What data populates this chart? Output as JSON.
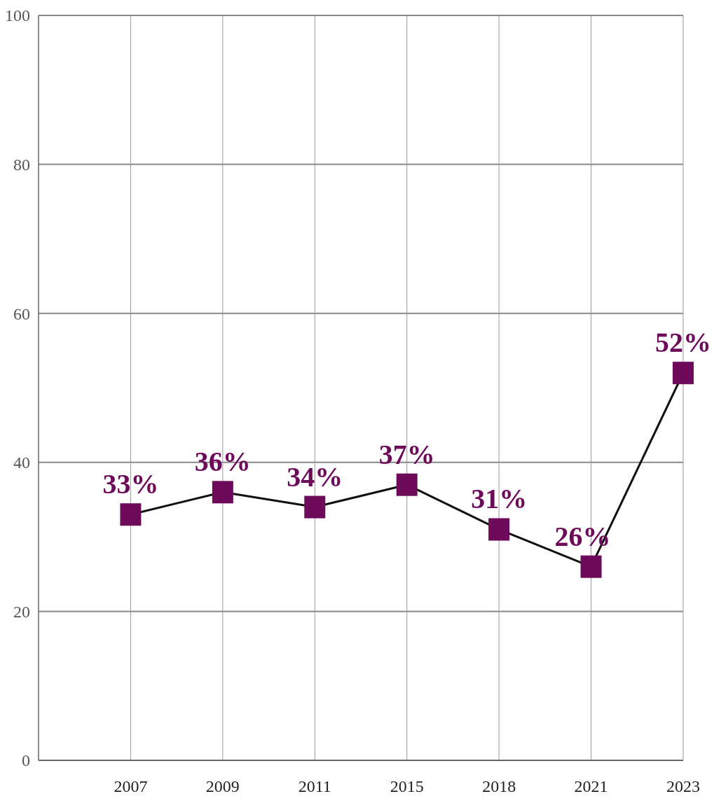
{
  "chart_data": {
    "type": "line",
    "categories": [
      "2007",
      "2009",
      "2011",
      "2015",
      "2018",
      "2021",
      "2023"
    ],
    "series": [
      {
        "color": "#6e0a5a",
        "values": [
          33,
          36,
          34,
          37,
          31,
          26,
          52
        ],
        "value_labels": [
          "33%",
          "36%",
          "34%",
          "37%",
          "31%",
          "26%",
          "52%"
        ]
      }
    ],
    "ylim": [
      0,
      100
    ],
    "yticks": [
      0,
      20,
      40,
      60,
      80,
      100
    ],
    "grid": true,
    "marker": "square",
    "line_style": "solid"
  }
}
